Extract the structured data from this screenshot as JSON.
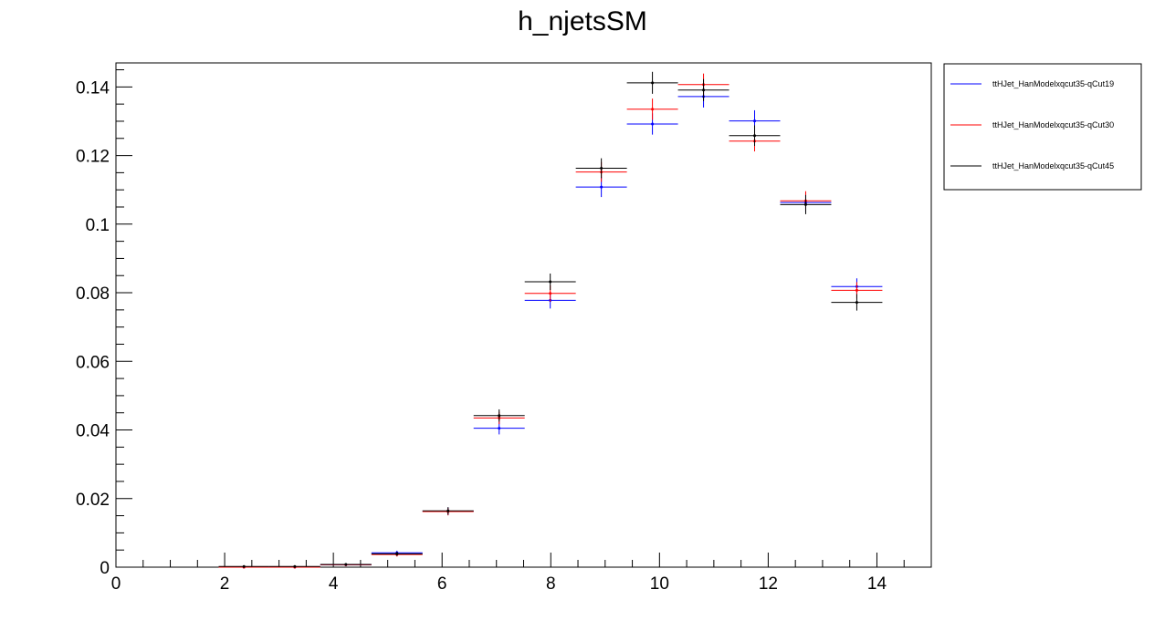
{
  "chart_data": {
    "type": "scatter",
    "title": "h_njetsSM",
    "xlabel": "",
    "ylabel": "",
    "xlim": [
      0,
      15
    ],
    "ylim": [
      0,
      0.147
    ],
    "grid": false,
    "legend_position": "top-right, outside plot",
    "x_ticks": [
      {
        "value": 0,
        "label": "0"
      },
      {
        "value": 2,
        "label": "2"
      },
      {
        "value": 4,
        "label": "4"
      },
      {
        "value": 6,
        "label": "6"
      },
      {
        "value": 8,
        "label": "8"
      },
      {
        "value": 10,
        "label": "10"
      },
      {
        "value": 12,
        "label": "12"
      },
      {
        "value": 14,
        "label": "14"
      }
    ],
    "y_ticks": [
      {
        "value": 0,
        "label": "0"
      },
      {
        "value": 0.02,
        "label": "0.02"
      },
      {
        "value": 0.04,
        "label": "0.04"
      },
      {
        "value": 0.06,
        "label": "0.06"
      },
      {
        "value": 0.08,
        "label": "0.08"
      },
      {
        "value": 0.1,
        "label": "0.1"
      },
      {
        "value": 0.12,
        "label": "0.12"
      },
      {
        "value": 0.14,
        "label": "0.14"
      }
    ],
    "bins": [
      {
        "low": 1.89,
        "high": 2.82
      },
      {
        "low": 2.82,
        "high": 3.76
      },
      {
        "low": 3.76,
        "high": 4.7
      },
      {
        "low": 4.7,
        "high": 5.64
      },
      {
        "low": 5.64,
        "high": 6.58
      },
      {
        "low": 6.58,
        "high": 7.52
      },
      {
        "low": 7.52,
        "high": 8.46
      },
      {
        "low": 8.46,
        "high": 9.4
      },
      {
        "low": 9.4,
        "high": 10.34
      },
      {
        "low": 10.34,
        "high": 11.28
      },
      {
        "low": 11.28,
        "high": 12.22
      },
      {
        "low": 12.22,
        "high": 13.16
      },
      {
        "low": 13.16,
        "high": 14.1
      }
    ],
    "series": [
      {
        "name": "ttHJet_HanModelxqcut35-qCut19",
        "color": "#0000ff",
        "values": [
          0.0,
          0.0,
          0.0007,
          0.0042,
          0.0163,
          0.0405,
          0.0778,
          0.1108,
          0.1292,
          0.1372,
          0.1301,
          0.1063,
          0.0818
        ],
        "errors": [
          0.0,
          0.0,
          0.0003,
          0.0006,
          0.0011,
          0.0018,
          0.0024,
          0.0029,
          0.0031,
          0.0032,
          0.0031,
          0.0028,
          0.0024
        ]
      },
      {
        "name": "ttHJet_HanModelxqcut35-qCut30",
        "color": "#ff0000",
        "values": [
          0.0,
          0.0,
          0.0007,
          0.0037,
          0.0162,
          0.0435,
          0.0798,
          0.1152,
          0.1335,
          0.1407,
          0.1242,
          0.1068,
          0.0807
        ],
        "errors": [
          0.0,
          0.0,
          0.0003,
          0.0006,
          0.0011,
          0.0018,
          0.0024,
          0.0029,
          0.0031,
          0.0032,
          0.003,
          0.0028,
          0.0024
        ]
      },
      {
        "name": "ttHJet_HanModelxqcut35-qCut45",
        "color": "#000000",
        "values": [
          0.0002,
          0.0002,
          0.0008,
          0.0039,
          0.0164,
          0.0442,
          0.0832,
          0.1163,
          0.1412,
          0.1391,
          0.1258,
          0.1057,
          0.0772
        ],
        "errors": [
          0.0002,
          0.0002,
          0.0003,
          0.0006,
          0.0011,
          0.0018,
          0.0024,
          0.0029,
          0.0032,
          0.0032,
          0.003,
          0.0028,
          0.0024
        ]
      }
    ]
  }
}
